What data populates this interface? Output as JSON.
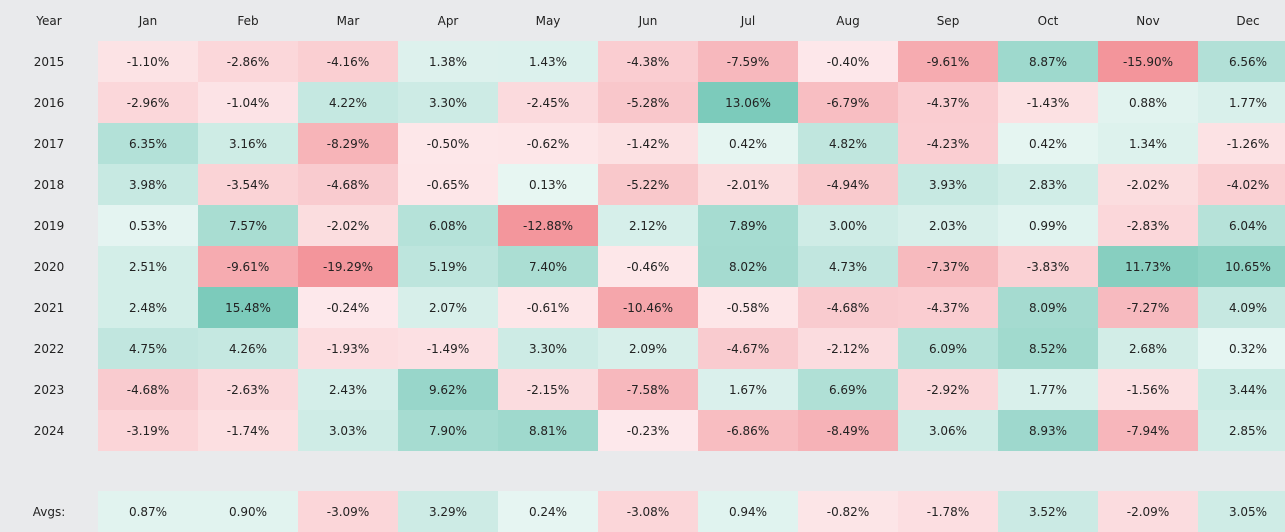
{
  "table": {
    "header": [
      "Year",
      "Jan",
      "Feb",
      "Mar",
      "Apr",
      "May",
      "Jun",
      "Jul",
      "Aug",
      "Sep",
      "Oct",
      "Nov",
      "Dec"
    ],
    "rows": [
      [
        "2015",
        "-1.10%",
        "-2.86%",
        "-4.16%",
        "1.38%",
        "1.43%",
        "-4.38%",
        "-7.59%",
        "-0.40%",
        "-9.61%",
        "8.87%",
        "-15.90%",
        "6.56%"
      ],
      [
        "2016",
        "-2.96%",
        "-1.04%",
        "4.22%",
        "3.30%",
        "-2.45%",
        "-5.28%",
        "13.06%",
        "-6.79%",
        "-4.37%",
        "-1.43%",
        "0.88%",
        "1.77%"
      ],
      [
        "2017",
        "6.35%",
        "3.16%",
        "-8.29%",
        "-0.50%",
        "-0.62%",
        "-1.42%",
        "0.42%",
        "4.82%",
        "-4.23%",
        "0.42%",
        "1.34%",
        "-1.26%"
      ],
      [
        "2018",
        "3.98%",
        "-3.54%",
        "-4.68%",
        "-0.65%",
        "0.13%",
        "-5.22%",
        "-2.01%",
        "-4.94%",
        "3.93%",
        "2.83%",
        "-2.02%",
        "-4.02%"
      ],
      [
        "2019",
        "0.53%",
        "7.57%",
        "-2.02%",
        "6.08%",
        "-12.88%",
        "2.12%",
        "7.89%",
        "3.00%",
        "2.03%",
        "0.99%",
        "-2.83%",
        "6.04%"
      ],
      [
        "2020",
        "2.51%",
        "-9.61%",
        "-19.29%",
        "5.19%",
        "7.40%",
        "-0.46%",
        "8.02%",
        "4.73%",
        "-7.37%",
        "-3.83%",
        "11.73%",
        "10.65%"
      ],
      [
        "2021",
        "2.48%",
        "15.48%",
        "-0.24%",
        "2.07%",
        "-0.61%",
        "-10.46%",
        "-0.58%",
        "-4.68%",
        "-4.37%",
        "8.09%",
        "-7.27%",
        "4.09%"
      ],
      [
        "2022",
        "4.75%",
        "4.26%",
        "-1.93%",
        "-1.49%",
        "3.30%",
        "2.09%",
        "-4.67%",
        "-2.12%",
        "6.09%",
        "8.52%",
        "2.68%",
        "0.32%"
      ],
      [
        "2023",
        "-4.68%",
        "-2.63%",
        "2.43%",
        "9.62%",
        "-2.15%",
        "-7.58%",
        "1.67%",
        "6.69%",
        "-2.92%",
        "1.77%",
        "-1.56%",
        "3.44%"
      ],
      [
        "2024",
        "-3.19%",
        "-1.74%",
        "3.03%",
        "7.90%",
        "8.81%",
        "-0.23%",
        "-6.86%",
        "-8.49%",
        "3.06%",
        "8.93%",
        "-7.94%",
        "2.85%"
      ]
    ],
    "averages": [
      "Avgs:",
      "0.87%",
      "0.90%",
      "-3.09%",
      "3.29%",
      "0.24%",
      "-3.08%",
      "0.94%",
      "-0.82%",
      "-1.78%",
      "3.52%",
      "-2.09%",
      "3.05%"
    ]
  }
}
